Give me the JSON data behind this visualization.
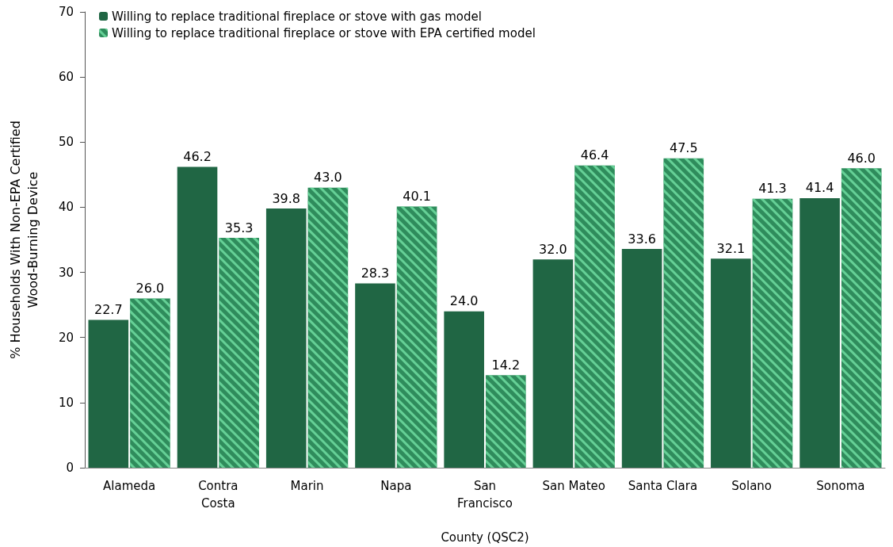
{
  "chart_data": {
    "type": "bar",
    "xlabel": "County (QSC2)",
    "ylabel": "% Households With Non-EPA Certified\nWood-Burning Device",
    "categories": [
      "Alameda",
      "Contra\nCosta",
      "Marin",
      "Napa",
      "San\nFrancisco",
      "San Mateo",
      "Santa Clara",
      "Solano",
      "Sonoma"
    ],
    "series": [
      {
        "name": "Willing to replace traditional fireplace or stove with gas model",
        "color": "#206644",
        "values": [
          22.7,
          46.2,
          39.8,
          28.3,
          24.0,
          32.0,
          33.6,
          32.1,
          41.4
        ],
        "value_labels": [
          "22.7",
          "46.2",
          "39.8",
          "28.3",
          "24.0",
          "32.0",
          "33.6",
          "32.1",
          "41.4"
        ]
      },
      {
        "name": "Willing to replace traditional fireplace or stove with EPA certified model",
        "color": "#2f8c5c",
        "values": [
          26.0,
          35.3,
          43.0,
          40.1,
          14.2,
          46.4,
          47.5,
          41.3,
          46.0
        ],
        "value_labels": [
          "26.0",
          "35.3",
          "43.0",
          "40.1",
          "14.2",
          "46.4",
          "47.5",
          "41.3",
          "46.0"
        ]
      }
    ],
    "ylim": [
      0,
      70
    ],
    "yticks": [
      0,
      10,
      20,
      30,
      40,
      50,
      60,
      70
    ],
    "grid": false,
    "legend": "top left"
  }
}
